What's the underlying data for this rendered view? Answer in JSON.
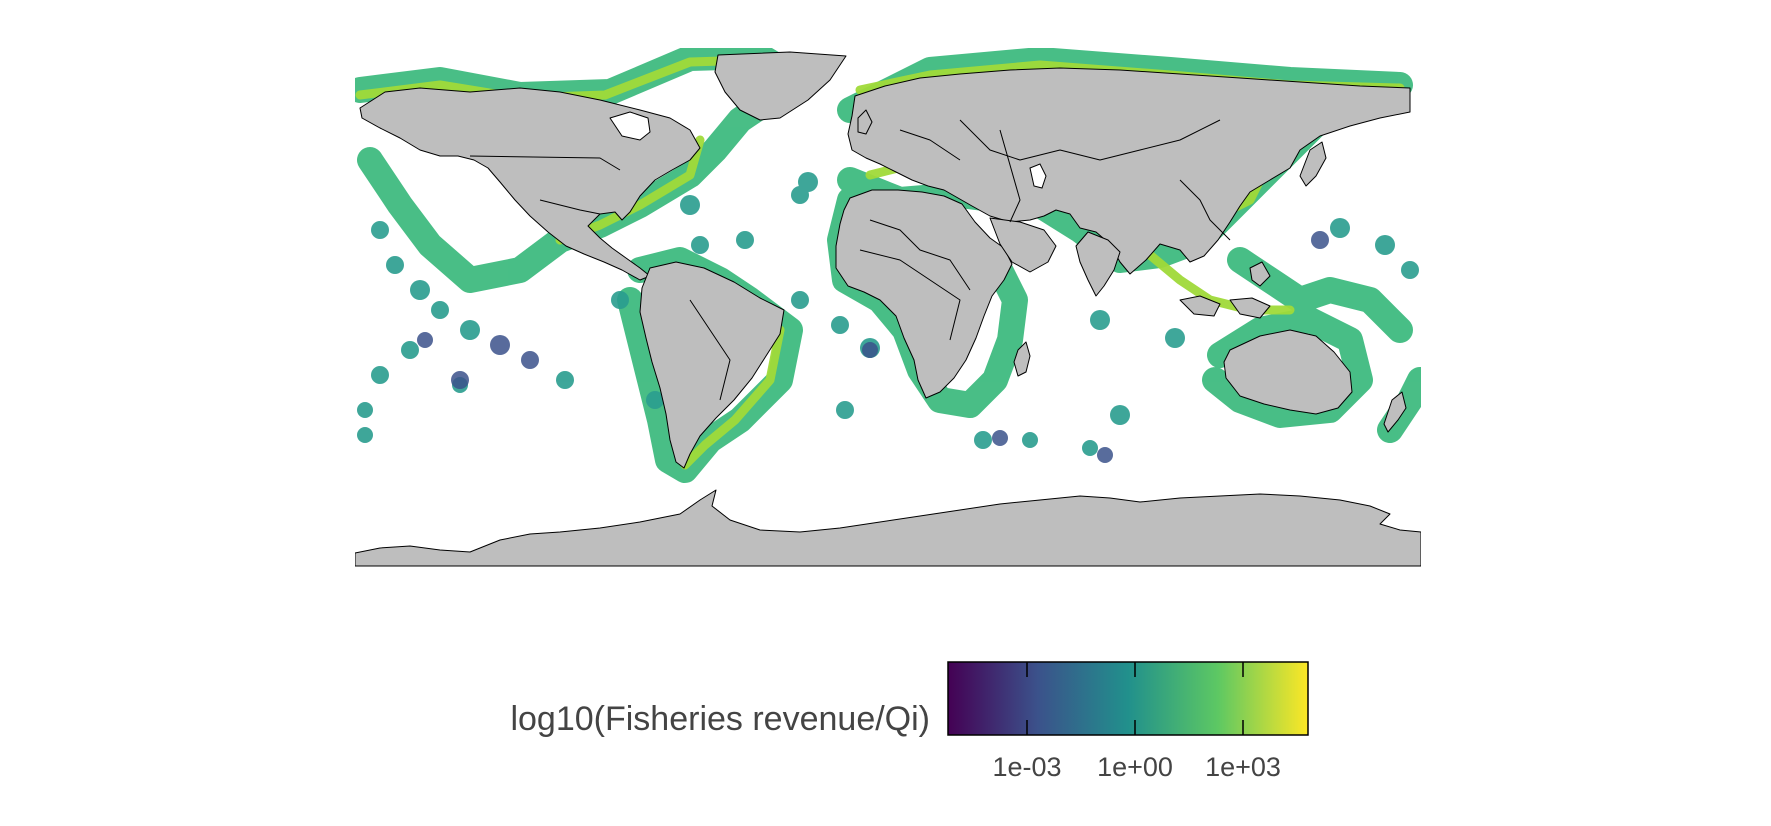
{
  "map": {
    "projection": "equirectangular",
    "background": "#ffffff",
    "land_color": "#bebebe",
    "border_color": "#000000",
    "palette": "viridis"
  },
  "legend": {
    "title": "log10(Fisheries revenue/Qi)",
    "ticks": [
      "1e-03",
      "1e+00",
      "1e+03"
    ],
    "colors": [
      "#440154",
      "#3b528b",
      "#21908c",
      "#5dc863",
      "#fde725"
    ]
  }
}
